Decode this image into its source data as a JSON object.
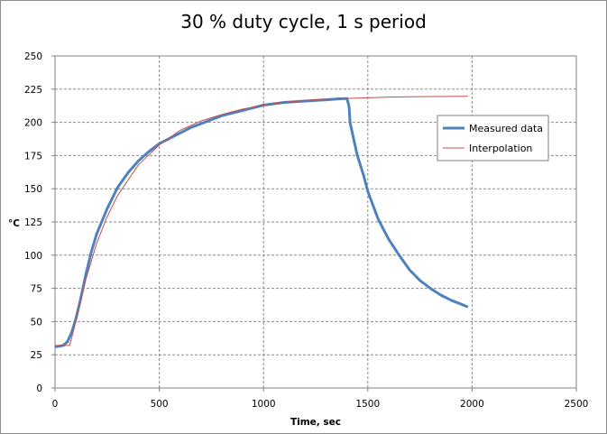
{
  "chart_data": {
    "type": "line",
    "title": "30 % duty cycle, 1 s period",
    "xlabel": "Time, sec",
    "ylabel": "°C",
    "xlim": [
      0,
      2500
    ],
    "ylim": [
      0,
      250
    ],
    "x_ticks": [
      0,
      500,
      1000,
      1500,
      2000,
      2500
    ],
    "y_ticks": [
      0,
      25,
      50,
      75,
      100,
      125,
      150,
      175,
      200,
      225,
      250
    ],
    "grid": true,
    "legend_position": "right",
    "series": [
      {
        "name": "Measured data",
        "color": "#4f81bd",
        "x": [
          0,
          40,
          60,
          80,
          100,
          120,
          150,
          175,
          200,
          250,
          300,
          350,
          400,
          450,
          500,
          550,
          600,
          650,
          700,
          800,
          900,
          1000,
          1100,
          1200,
          1300,
          1350,
          1400,
          1410,
          1415,
          1430,
          1450,
          1480,
          1500,
          1550,
          1600,
          1650,
          1700,
          1750,
          1800,
          1850,
          1900,
          1950,
          1980
        ],
        "y": [
          31,
          32,
          35,
          42,
          52,
          65,
          87,
          103,
          116,
          135,
          151,
          162,
          171,
          178,
          184,
          188,
          192,
          196,
          199,
          205,
          209,
          213,
          215,
          216,
          217,
          217.5,
          218,
          212,
          200,
          189,
          175,
          160,
          148,
          127,
          112,
          100,
          89,
          81,
          75,
          70,
          66,
          63,
          61
        ]
      },
      {
        "name": "Interpolation",
        "color": "#c0504d",
        "x": [
          0,
          70,
          100,
          150,
          200,
          250,
          300,
          400,
          500,
          600,
          700,
          800,
          900,
          1000,
          1100,
          1200,
          1300,
          1400,
          1500,
          1600,
          1700,
          1800,
          1900,
          1980
        ],
        "y": [
          32,
          32,
          50,
          83,
          109,
          129,
          145,
          168,
          183,
          194,
          201,
          206,
          210,
          213,
          215,
          216.5,
          217.5,
          218,
          218.5,
          219,
          219.2,
          219.4,
          219.5,
          219.6
        ]
      }
    ]
  }
}
